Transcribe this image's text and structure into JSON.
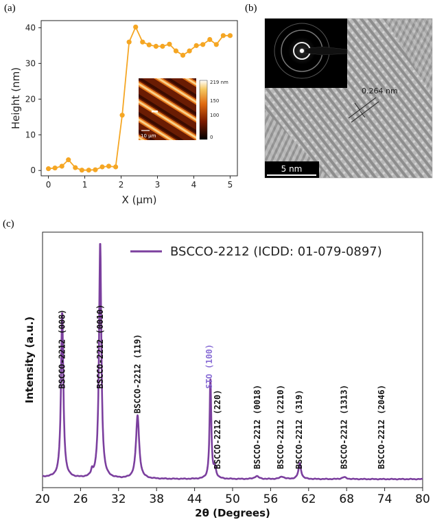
{
  "panels": {
    "a": "(a)",
    "b": "(b)",
    "c": "(c)"
  },
  "chart_data": [
    {
      "id": "height-profile",
      "type": "line",
      "xlabel": "X (μm)",
      "ylabel": "Height (nm)",
      "xlim": [
        -0.2,
        5.2
      ],
      "ylim": [
        -1.5,
        42
      ],
      "xticks": [
        0,
        1,
        2,
        3,
        4,
        5
      ],
      "yticks": [
        0,
        10,
        20,
        30,
        40
      ],
      "color": "#f5a623",
      "x": [
        0,
        0.18,
        0.37,
        0.55,
        0.74,
        0.92,
        1.11,
        1.29,
        1.48,
        1.66,
        1.85,
        2.03,
        2.22,
        2.4,
        2.59,
        2.77,
        2.96,
        3.14,
        3.33,
        3.51,
        3.7,
        3.88,
        4.07,
        4.25,
        4.44,
        4.62,
        4.81,
        5.0
      ],
      "y": [
        0.5,
        0.7,
        1.2,
        3.0,
        0.8,
        0.1,
        0.1,
        0.2,
        1.0,
        1.2,
        1.0,
        15.5,
        36.0,
        40.2,
        36.0,
        35.2,
        34.8,
        34.8,
        35.4,
        33.5,
        32.3,
        33.5,
        35.0,
        35.3,
        36.7,
        35.3,
        37.8,
        37.8
      ]
    },
    {
      "id": "xrd",
      "type": "line",
      "xlabel": "2θ (Degrees)",
      "ylabel": "Intensity (a.u.)",
      "xlim": [
        20,
        80
      ],
      "ylim": [
        0,
        105
      ],
      "xticks": [
        20,
        26,
        32,
        38,
        44,
        50,
        56,
        62,
        68,
        74,
        80
      ],
      "color": "#7b3f9e",
      "legend": "BSCCO-2212 (ICDD: 01-079-0897)",
      "baseline": 3.5,
      "peaks": [
        {
          "x": 23.1,
          "height": 68,
          "width": 0.22
        },
        {
          "x": 29.1,
          "height": 97,
          "width": 0.22
        },
        {
          "x": 35.0,
          "height": 26,
          "width": 0.3
        },
        {
          "x": 46.5,
          "height": 41,
          "width": 0.16
        },
        {
          "x": 47.2,
          "height": 4,
          "width": 0.25
        },
        {
          "x": 53.8,
          "height": 1.2,
          "width": 0.4
        },
        {
          "x": 57.8,
          "height": 1.0,
          "width": 0.4
        },
        {
          "x": 60.6,
          "height": 6.5,
          "width": 0.25
        },
        {
          "x": 67.6,
          "height": 0.8,
          "width": 0.4
        },
        {
          "x": 27.8,
          "height": 2.2,
          "width": 0.15
        }
      ],
      "annotations": [
        {
          "label": "BSCCO-2212 (008)",
          "x": 23.1,
          "color": "#111"
        },
        {
          "label": "BSCCO-2212 (0010)",
          "x": 29.1,
          "color": "#111"
        },
        {
          "label": "BSCCO-2212 (119)",
          "x": 35.0,
          "color": "#111"
        },
        {
          "label": "STO (100)",
          "x": 46.3,
          "color": "#8a6fd6"
        },
        {
          "label": "BSCCO-2212 (220)",
          "x": 47.6,
          "color": "#111"
        },
        {
          "label": "BSCCO-2212 (0018)",
          "x": 53.9,
          "color": "#111"
        },
        {
          "label": "BSCCO-2212 (2210)",
          "x": 57.6,
          "color": "#111"
        },
        {
          "label": "BSCCO-2212 (319)",
          "x": 60.5,
          "color": "#111"
        },
        {
          "label": "BSCCO-2212 (1313)",
          "x": 67.6,
          "color": "#111"
        },
        {
          "label": "BSCCO-2212 (2046)",
          "x": 73.5,
          "color": "#111"
        }
      ]
    }
  ],
  "afm_inset": {
    "scale_max": "219 nm",
    "ticks": [
      "150",
      "100",
      "0"
    ],
    "scalebar": "10 μm"
  },
  "tem": {
    "d_spacing": "0.264 nm",
    "scalebar": "5 nm"
  }
}
